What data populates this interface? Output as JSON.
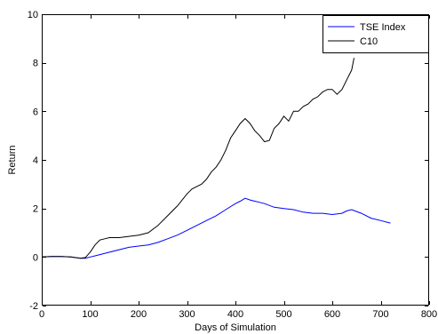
{
  "chart_data": {
    "type": "line",
    "title": "",
    "xlabel": "Days of Simulation",
    "ylabel": "Return",
    "xlim": [
      0,
      800
    ],
    "ylim": [
      -2,
      10
    ],
    "xticks": [
      0,
      100,
      200,
      300,
      400,
      500,
      600,
      700,
      800
    ],
    "yticks": [
      -2,
      0,
      2,
      4,
      6,
      8,
      10
    ],
    "grid": false,
    "legend_position": "top-right",
    "series": [
      {
        "name": "TSE Index",
        "color": "#0000ff",
        "x": [
          0,
          20,
          40,
          60,
          80,
          90,
          100,
          110,
          120,
          140,
          160,
          180,
          200,
          220,
          240,
          260,
          280,
          300,
          320,
          340,
          360,
          380,
          400,
          410,
          420,
          430,
          440,
          450,
          460,
          480,
          500,
          520,
          540,
          560,
          580,
          600,
          620,
          630,
          640,
          660,
          680,
          700,
          720
        ],
        "values": [
          0.0,
          0.02,
          0.02,
          0.0,
          -0.05,
          -0.05,
          0.0,
          0.05,
          0.1,
          0.2,
          0.3,
          0.4,
          0.45,
          0.5,
          0.6,
          0.75,
          0.9,
          1.1,
          1.3,
          1.5,
          1.7,
          1.95,
          2.2,
          2.3,
          2.42,
          2.35,
          2.3,
          2.25,
          2.2,
          2.05,
          2.0,
          1.95,
          1.85,
          1.8,
          1.8,
          1.75,
          1.8,
          1.9,
          1.95,
          1.8,
          1.6,
          1.5,
          1.4
        ]
      },
      {
        "name": "C10",
        "color": "#000000",
        "x": [
          0,
          20,
          40,
          60,
          80,
          90,
          100,
          110,
          120,
          130,
          140,
          160,
          180,
          200,
          220,
          240,
          260,
          280,
          300,
          310,
          320,
          330,
          340,
          350,
          360,
          370,
          380,
          390,
          400,
          410,
          420,
          430,
          440,
          450,
          460,
          470,
          480,
          490,
          500,
          510,
          520,
          530,
          540,
          550,
          560,
          570,
          580,
          590,
          600,
          610,
          620,
          630,
          640,
          645
        ],
        "values": [
          0.0,
          0.02,
          0.02,
          0.0,
          -0.05,
          -0.02,
          0.2,
          0.5,
          0.7,
          0.75,
          0.8,
          0.8,
          0.85,
          0.9,
          1.0,
          1.3,
          1.7,
          2.1,
          2.6,
          2.8,
          2.9,
          3.0,
          3.2,
          3.5,
          3.7,
          4.0,
          4.4,
          4.9,
          5.2,
          5.5,
          5.7,
          5.5,
          5.2,
          5.0,
          4.75,
          4.8,
          5.3,
          5.5,
          5.8,
          5.6,
          6.0,
          6.0,
          6.2,
          6.3,
          6.5,
          6.6,
          6.8,
          6.9,
          6.9,
          6.7,
          6.9,
          7.3,
          7.7,
          8.2
        ]
      }
    ]
  }
}
